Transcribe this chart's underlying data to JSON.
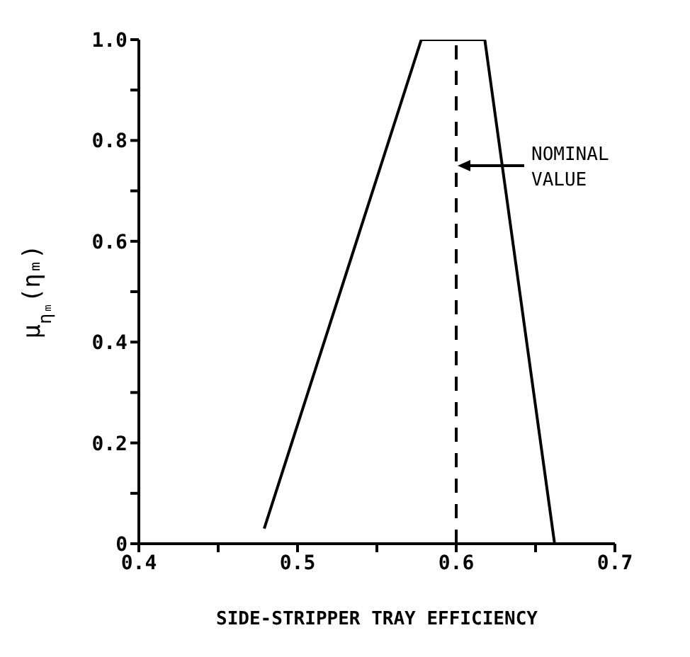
{
  "chart_data": {
    "type": "line",
    "xlabel": "SIDE-STRIPPER TRAY EFFICIENCY",
    "ylabel": "μ$_{ηₘ}$(ηₘ)",
    "x": [
      0.479,
      0.578,
      0.618,
      0.662
    ],
    "series": [
      {
        "color": "#000000",
        "values": [
          0.03,
          1,
          1,
          0
        ]
      }
    ],
    "xlim": [
      0.4,
      0.7
    ],
    "ylim": [
      0,
      1
    ],
    "xticks": [
      {
        "value": 0.4,
        "label": "0.4"
      },
      {
        "value": 0.45,
        "label": null
      },
      {
        "value": 0.5,
        "label": "0.5"
      },
      {
        "value": 0.55,
        "label": null
      },
      {
        "value": 0.6,
        "label": "0.6"
      },
      {
        "value": 0.65,
        "label": null
      },
      {
        "value": 0.7,
        "label": "0.7"
      }
    ],
    "yticks": [
      0,
      {
        "value": 0.1,
        "label": null
      },
      {
        "value": 0.2,
        "label": "0.2"
      },
      {
        "value": 0.3,
        "label": null
      },
      {
        "value": 0.4,
        "label": "0.4"
      },
      {
        "value": 0.5,
        "label": null
      },
      {
        "value": 0.6,
        "label": "0.6"
      },
      {
        "value": 0.7,
        "label": null
      },
      {
        "value": 0.8,
        "label": "0.8"
      },
      {
        "value": 0.9,
        "label": null
      },
      {
        "value": 1,
        "label": "1.0"
      }
    ],
    "ref_lines": [
      {
        "axis": "x",
        "value": 0.6,
        "label": null,
        "color": "#000000",
        "line_style": "dashed"
      }
    ],
    "annotations": [
      "NOMINAL VALUE"
    ],
    "marker": "none",
    "line_style": "solid"
  }
}
